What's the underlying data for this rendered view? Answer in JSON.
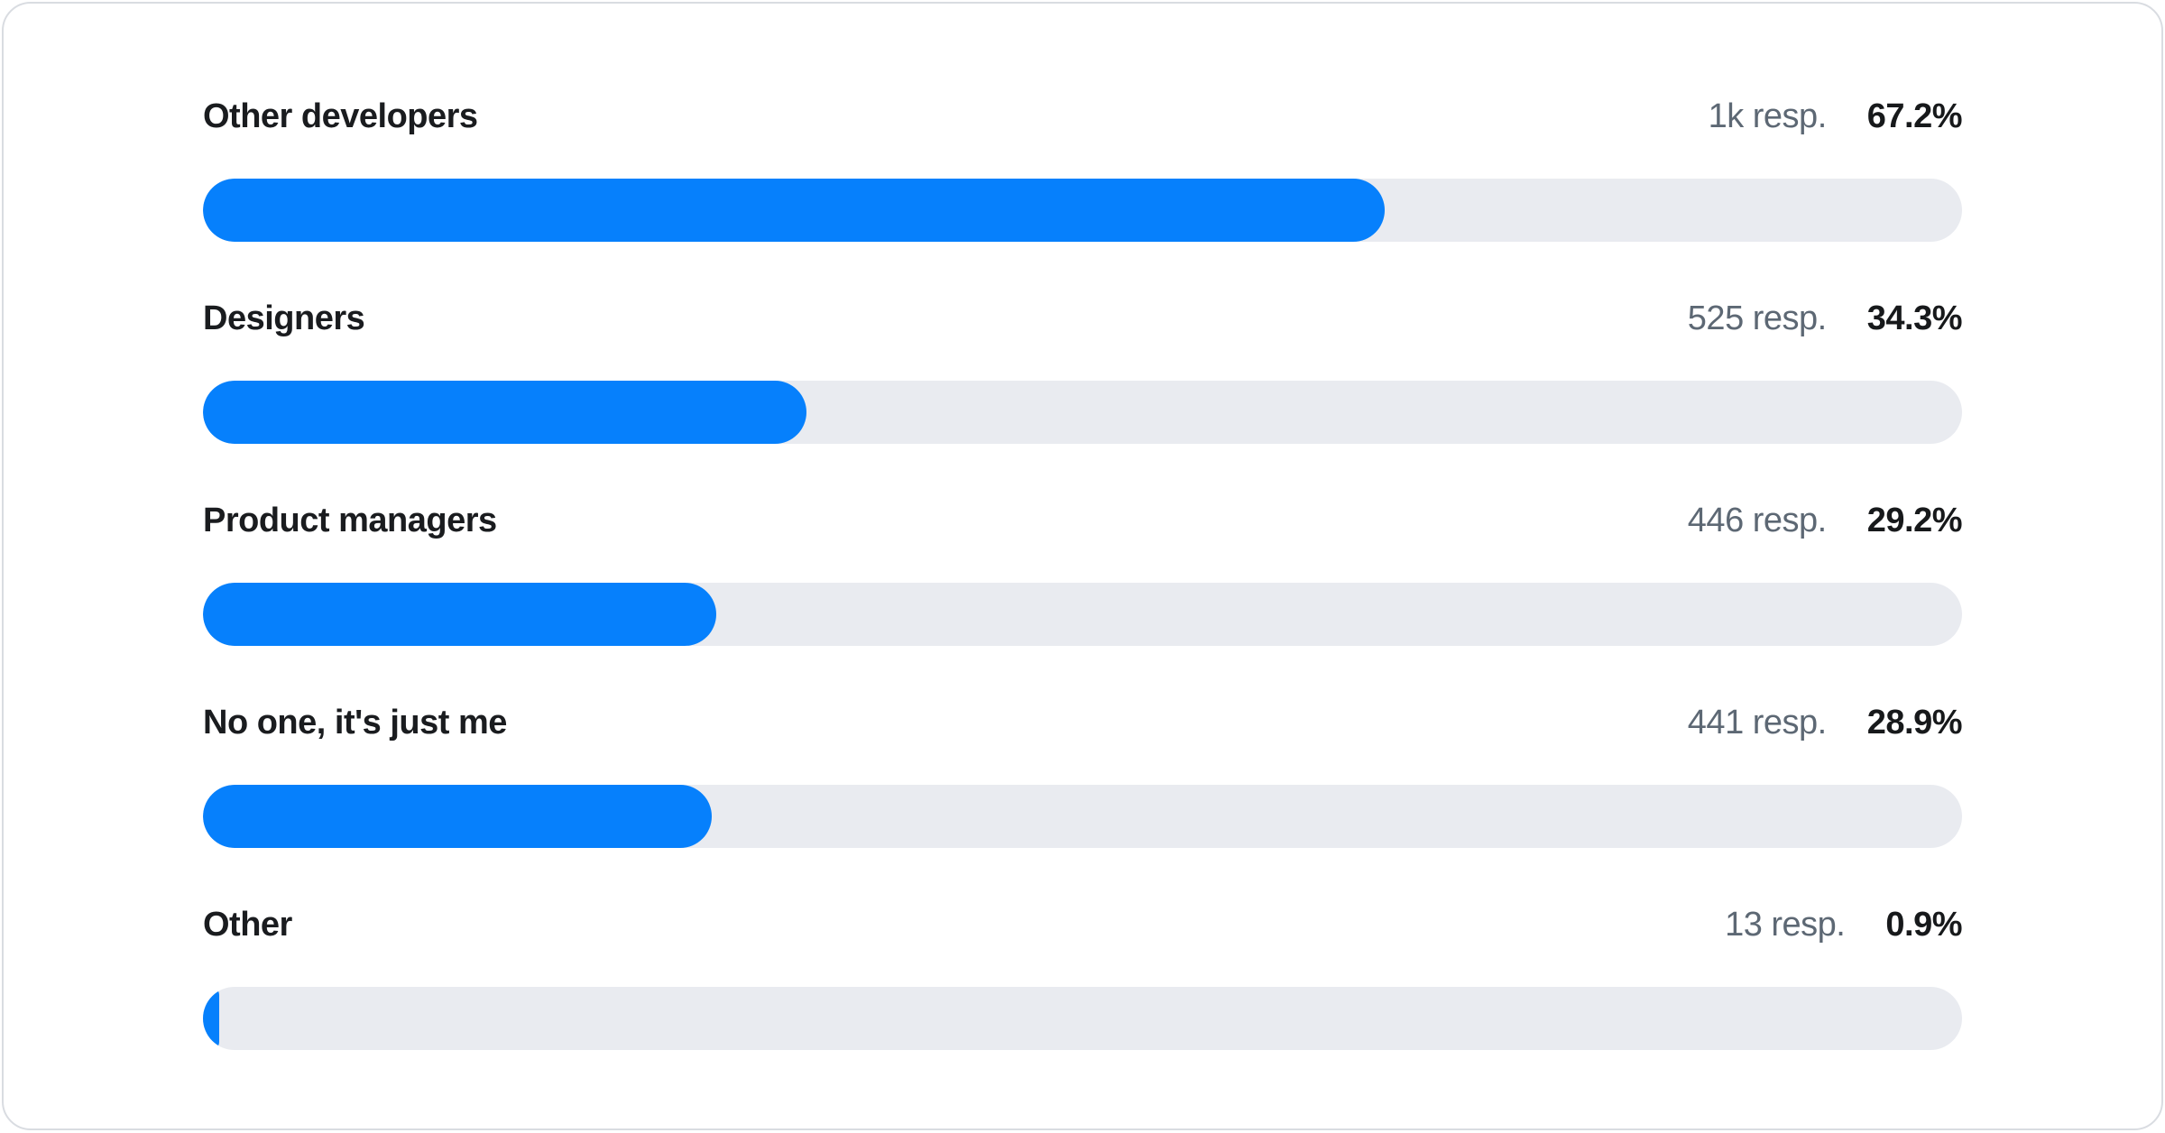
{
  "chart_data": {
    "type": "bar",
    "orientation": "horizontal",
    "title": "",
    "xlabel": "",
    "ylabel": "",
    "xlim": [
      0,
      100
    ],
    "value_unit": "percent",
    "grid": false,
    "legend": false,
    "categories": [
      "Other developers",
      "Designers",
      "Product managers",
      "No one, it's just me",
      "Other"
    ],
    "values": [
      67.2,
      34.3,
      29.2,
      28.9,
      0.9
    ],
    "response_counts": [
      "1k",
      "525",
      "446",
      "441",
      "13"
    ],
    "data_labels": [
      "67.2%",
      "34.3%",
      "29.2%",
      "28.9%",
      "0.9%"
    ]
  },
  "rows": [
    {
      "label": "Other developers",
      "responses": "1k resp.",
      "percent": "67.2%",
      "value": 67.2
    },
    {
      "label": "Designers",
      "responses": "525 resp.",
      "percent": "34.3%",
      "value": 34.3
    },
    {
      "label": "Product managers",
      "responses": "446 resp.",
      "percent": "29.2%",
      "value": 29.2
    },
    {
      "label": "No one, it's just me",
      "responses": "441 resp.",
      "percent": "28.9%",
      "value": 28.9
    },
    {
      "label": "Other",
      "responses": "13 resp.",
      "percent": "0.9%",
      "value": 0.9
    }
  ],
  "colors": {
    "bar_fill": "#0680FC",
    "bar_track": "#E9EBF0",
    "label_text": "#1A1C1F",
    "muted_text": "#5D6874",
    "percent_text": "#17191B",
    "card_border": "#D9DCE1",
    "card_background": "#FFFFFF"
  }
}
